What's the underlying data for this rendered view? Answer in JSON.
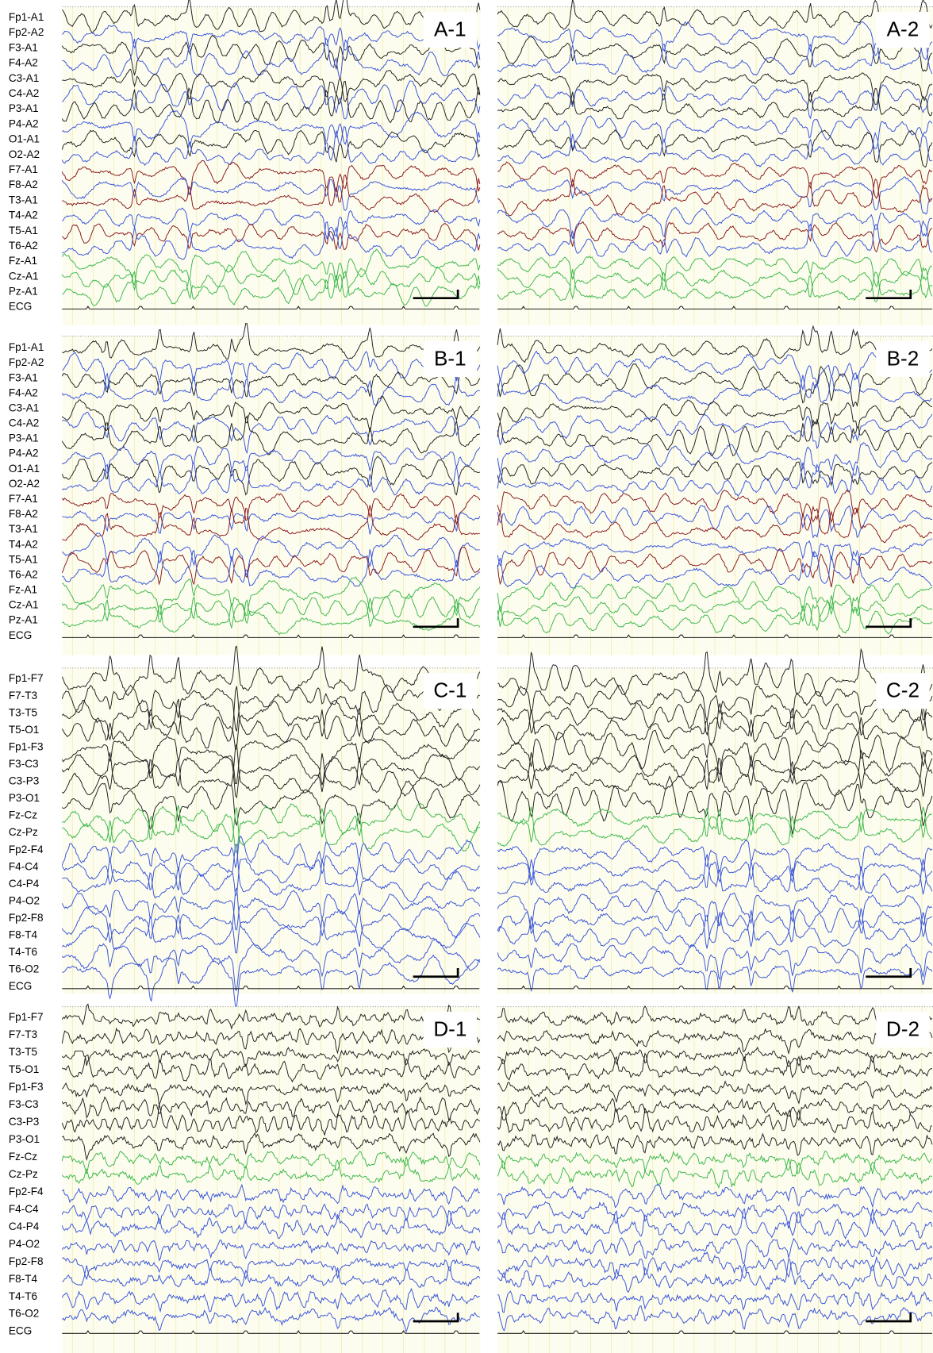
{
  "rows": [
    {
      "channels": [
        "Fp1-A1",
        "Fp2-A2",
        "F3-A1",
        "F4-A2",
        "C3-A1",
        "C4-A2",
        "P3-A1",
        "P4-A2",
        "O1-A1",
        "O2-A2",
        "F7-A1",
        "F8-A2",
        "T3-A1",
        "T4-A2",
        "T5-A1",
        "T6-A2",
        "Fz-A1",
        "Cz-A1",
        "Pz-A1",
        "ECG"
      ],
      "panels": [
        {
          "label": "A-1"
        },
        {
          "label": "A-2"
        }
      ]
    },
    {
      "channels": [
        "Fp1-A1",
        "Fp2-A2",
        "F3-A1",
        "F4-A2",
        "C3-A1",
        "C4-A2",
        "P3-A1",
        "P4-A2",
        "O1-A1",
        "O2-A2",
        "F7-A1",
        "F8-A2",
        "T3-A1",
        "T4-A2",
        "T5-A1",
        "T6-A2",
        "Fz-A1",
        "Cz-A1",
        "Pz-A1",
        "ECG"
      ],
      "panels": [
        {
          "label": "B-1"
        },
        {
          "label": "B-2"
        }
      ]
    },
    {
      "channels": [
        "Fp1-F7",
        "F7-T3",
        "T3-T5",
        "T5-O1",
        "Fp1-F3",
        "F3-C3",
        "C3-P3",
        "P3-O1",
        "Fz-Cz",
        "Cz-Pz",
        "Fp2-F4",
        "F4-C4",
        "C4-P4",
        "P4-O2",
        "Fp2-F8",
        "F8-T4",
        "T4-T6",
        "T6-O2",
        "ECG"
      ],
      "panels": [
        {
          "label": "C-1"
        },
        {
          "label": "C-2"
        }
      ]
    },
    {
      "channels": [
        "Fp1-F7",
        "F7-T3",
        "T3-T5",
        "T5-O1",
        "Fp1-F3",
        "F3-C3",
        "C3-P3",
        "P3-O1",
        "Fz-Cz",
        "Cz-Pz",
        "Fp2-F4",
        "F4-C4",
        "C4-P4",
        "P4-O2",
        "Fp2-F8",
        "F8-T4",
        "T4-T6",
        "T6-O2",
        "ECG"
      ],
      "panels": [
        {
          "label": "D-1"
        },
        {
          "label": "D-2"
        }
      ]
    }
  ]
}
